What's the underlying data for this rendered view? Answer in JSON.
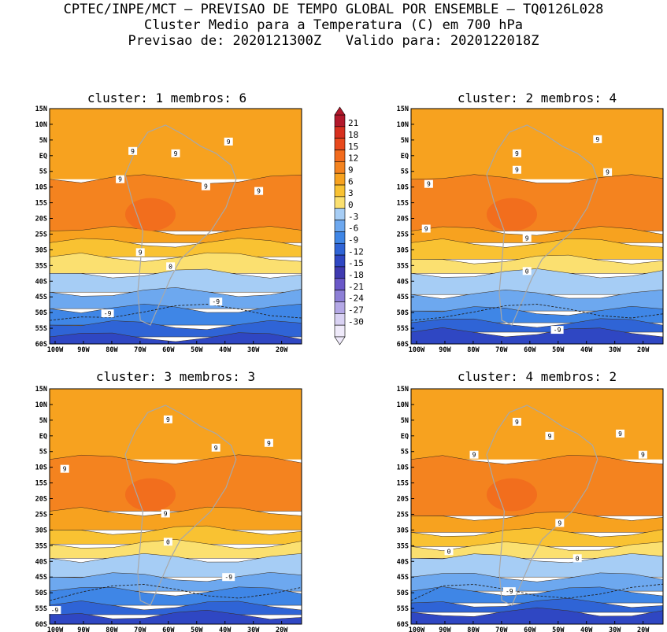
{
  "header": {
    "line1": "CPTEC/INPE/MCT – PREVISAO DE TEMPO GLOBAL POR ENSEMBLE – TQ0126L028",
    "line2": "Cluster Medio para a Temperatura (C) em 700 hPa",
    "line3": "Previsao de: 2020121300Z   Valido para: 2020122018Z"
  },
  "panels": [
    {
      "id": "cluster-1",
      "title": "cluster: 1  membros: 6"
    },
    {
      "id": "cluster-2",
      "title": "cluster: 2  membros: 4"
    },
    {
      "id": "cluster-3",
      "title": "cluster: 3  membros: 3"
    },
    {
      "id": "cluster-4",
      "title": "cluster: 4  membros: 2"
    }
  ],
  "axes": {
    "lat_labels": [
      "15N",
      "10N",
      "5N",
      "EQ",
      "5S",
      "10S",
      "15S",
      "20S",
      "25S",
      "30S",
      "35S",
      "40S",
      "45S",
      "50S",
      "55S",
      "60S"
    ],
    "lon_labels": [
      "100W",
      "90W",
      "80W",
      "70W",
      "60W",
      "50W",
      "40W",
      "30W",
      "20W"
    ]
  },
  "colorbar": {
    "levels": [
      "21",
      "18",
      "15",
      "12",
      "9",
      "6",
      "3",
      "0",
      "-3",
      "-6",
      "-9",
      "-12",
      "-15",
      "-18",
      "-21",
      "-24",
      "-27",
      "-30"
    ],
    "colors": [
      "#b2182b",
      "#d7301f",
      "#e8491d",
      "#f26b1d",
      "#f4831f",
      "#f7a21f",
      "#f9c232",
      "#fbe070",
      "#a6cdf5",
      "#6da8ef",
      "#3f86e6",
      "#2f64d6",
      "#2f47c3",
      "#3f3ab0",
      "#6a58c8",
      "#8d7fd6",
      "#b4a8e6",
      "#d9d2f3",
      "#efeafa"
    ]
  },
  "contour_labels": {
    "cluster-1": [
      "9",
      "9",
      "9",
      "9",
      "9",
      "9",
      "9",
      "0",
      "-9",
      "-9"
    ],
    "cluster-2": [
      "9",
      "9",
      "9",
      "9",
      "9",
      "9",
      "9",
      "0",
      "-9"
    ],
    "cluster-3": [
      "9",
      "9",
      "9",
      "9",
      "9",
      "0",
      "-9",
      "-9"
    ],
    "cluster-4": [
      "9",
      "9",
      "9",
      "9",
      "9",
      "9",
      "0",
      "0",
      "-9"
    ]
  }
}
